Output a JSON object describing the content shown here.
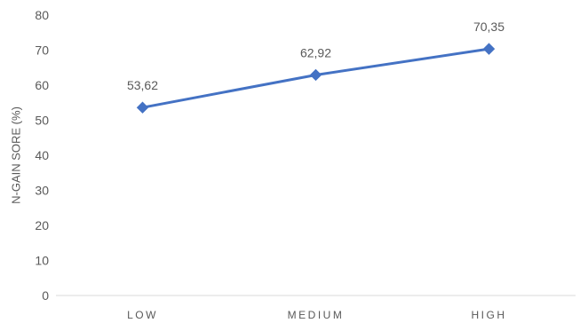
{
  "chart_data": {
    "type": "line",
    "categories": [
      "LOW",
      "MEDIUM",
      "HIGH"
    ],
    "series": [
      {
        "values": [
          53.62,
          62.92,
          70.35
        ]
      }
    ],
    "data_labels": [
      "53,62",
      "62,92",
      "70,35"
    ],
    "ylabel": "N-GAIN SORE (%)",
    "xlabel": "",
    "ylim": [
      0,
      80
    ],
    "yticks": [
      0,
      10,
      20,
      30,
      40,
      50,
      60,
      70,
      80
    ],
    "grid": false,
    "line_color": "#4472C4",
    "marker": "diamond"
  }
}
